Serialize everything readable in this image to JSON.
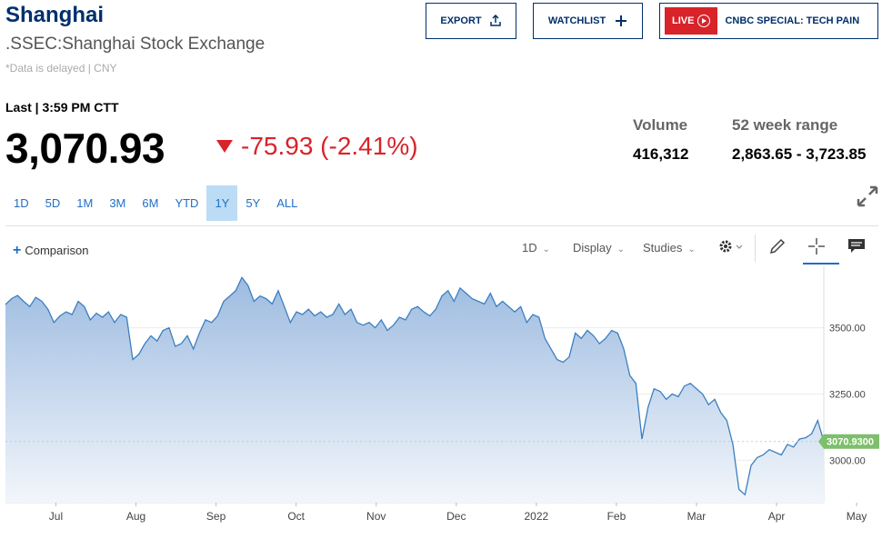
{
  "header": {
    "title": "Shanghai",
    "exchange": ".SSEC:Shanghai Stock Exchange",
    "delayed_note": "*Data is delayed | CNY",
    "export_label": "EXPORT",
    "watchlist_label": "WATCHLIST",
    "live_label": "LIVE",
    "special_label": "CNBC SPECIAL: TECH PAIN"
  },
  "quote": {
    "last_label": "Last | 3:59 PM CTT",
    "price": "3,070.93",
    "change": "-75.93 (-2.41%)",
    "volume_label": "Volume",
    "volume": "416,312",
    "range_label": "52 week range",
    "range": "2,863.65 - 3,723.85"
  },
  "ranges": [
    "1D",
    "5D",
    "1M",
    "3M",
    "6M",
    "YTD",
    "1Y",
    "5Y",
    "ALL"
  ],
  "active_range": "1Y",
  "toolbar": {
    "comparison": "Comparison",
    "interval": "1D",
    "display": "Display",
    "studies": "Studies"
  },
  "colors": {
    "accent": "#1f6fc5",
    "navy": "#002f6c",
    "down": "#d8232a",
    "line": "#3c7fc0",
    "price_tag": "#7dbf6a"
  },
  "icons": [
    "share-icon",
    "plus-icon",
    "play-icon",
    "expand-icon",
    "gear-icon",
    "pencil-icon",
    "crosshair-icon",
    "comment-icon"
  ],
  "chart_data": {
    "type": "area",
    "x_tick_labels": [
      "Jul",
      "Aug",
      "Sep",
      "Oct",
      "Nov",
      "Dec",
      "2022",
      "Feb",
      "Mar",
      "Apr",
      "May"
    ],
    "y_tick_labels": [
      "3500.00",
      "3250.00",
      "3000.00"
    ],
    "y_ticks": [
      3500,
      3250,
      3000
    ],
    "ylim": [
      2840,
      3732
    ],
    "last_value": 3070.93,
    "last_label": "3070.9300",
    "values": [
      3588,
      3610,
      3622,
      3600,
      3580,
      3615,
      3600,
      3570,
      3520,
      3545,
      3560,
      3550,
      3600,
      3580,
      3530,
      3555,
      3540,
      3560,
      3520,
      3550,
      3540,
      3380,
      3400,
      3440,
      3470,
      3450,
      3490,
      3500,
      3430,
      3440,
      3470,
      3420,
      3480,
      3530,
      3520,
      3545,
      3600,
      3620,
      3640,
      3690,
      3660,
      3600,
      3620,
      3610,
      3590,
      3640,
      3580,
      3520,
      3560,
      3550,
      3570,
      3545,
      3560,
      3540,
      3550,
      3590,
      3550,
      3570,
      3520,
      3510,
      3520,
      3500,
      3530,
      3490,
      3510,
      3540,
      3530,
      3570,
      3580,
      3560,
      3545,
      3570,
      3620,
      3640,
      3600,
      3650,
      3630,
      3610,
      3600,
      3590,
      3630,
      3580,
      3600,
      3580,
      3560,
      3580,
      3520,
      3550,
      3540,
      3460,
      3420,
      3380,
      3370,
      3390,
      3480,
      3460,
      3490,
      3470,
      3440,
      3460,
      3490,
      3480,
      3420,
      3320,
      3290,
      3080,
      3200,
      3270,
      3260,
      3230,
      3250,
      3240,
      3280,
      3290,
      3270,
      3250,
      3210,
      3230,
      3180,
      3150,
      3060,
      2890,
      2870,
      2980,
      3010,
      3020,
      3040,
      3030,
      3020,
      3060,
      3050,
      3080,
      3085,
      3100,
      3150,
      3071
    ]
  }
}
